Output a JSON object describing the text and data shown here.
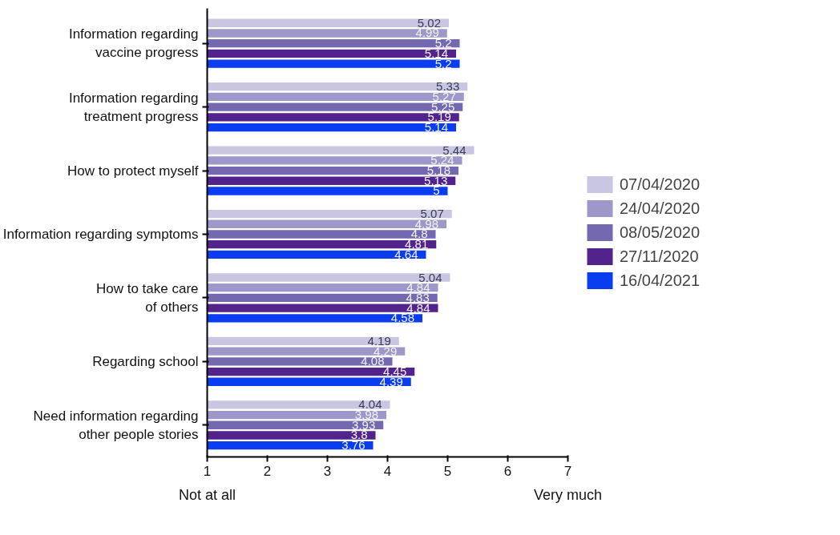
{
  "chart_data": {
    "type": "bar",
    "orientation": "horizontal",
    "categories": [
      "Information regarding\nvaccine progress",
      "Information regarding\ntreatment progress",
      "How to protect myself",
      "Information regarding symptoms",
      "How to take care\nof others",
      "Regarding school",
      "Need information regarding\nother people stories"
    ],
    "series": [
      {
        "name": "07/04/2020",
        "color": "#c9c6e2",
        "values": [
          5.02,
          5.33,
          5.44,
          5.07,
          5.04,
          4.19,
          4.04
        ]
      },
      {
        "name": "24/04/2020",
        "color": "#9d98c9",
        "values": [
          4.99,
          5.27,
          5.24,
          4.98,
          4.84,
          4.29,
          3.98
        ]
      },
      {
        "name": "08/05/2020",
        "color": "#7468b0",
        "values": [
          5.2,
          5.25,
          5.18,
          4.8,
          4.83,
          4.08,
          3.93
        ]
      },
      {
        "name": "27/11/2020",
        "color": "#52238d",
        "values": [
          5.14,
          5.19,
          5.13,
          4.81,
          4.84,
          4.45,
          3.8
        ]
      },
      {
        "name": "16/04/2021",
        "color": "#0a3cf0",
        "values": [
          5.2,
          5.14,
          5,
          4.64,
          4.58,
          4.39,
          3.76
        ]
      }
    ],
    "xlim": [
      1,
      7
    ],
    "xticks": [
      1,
      2,
      3,
      4,
      5,
      6,
      7
    ],
    "data_labels": true,
    "legend": "right",
    "grid": false,
    "annotations": [
      "Not at all",
      "Very much"
    ]
  }
}
